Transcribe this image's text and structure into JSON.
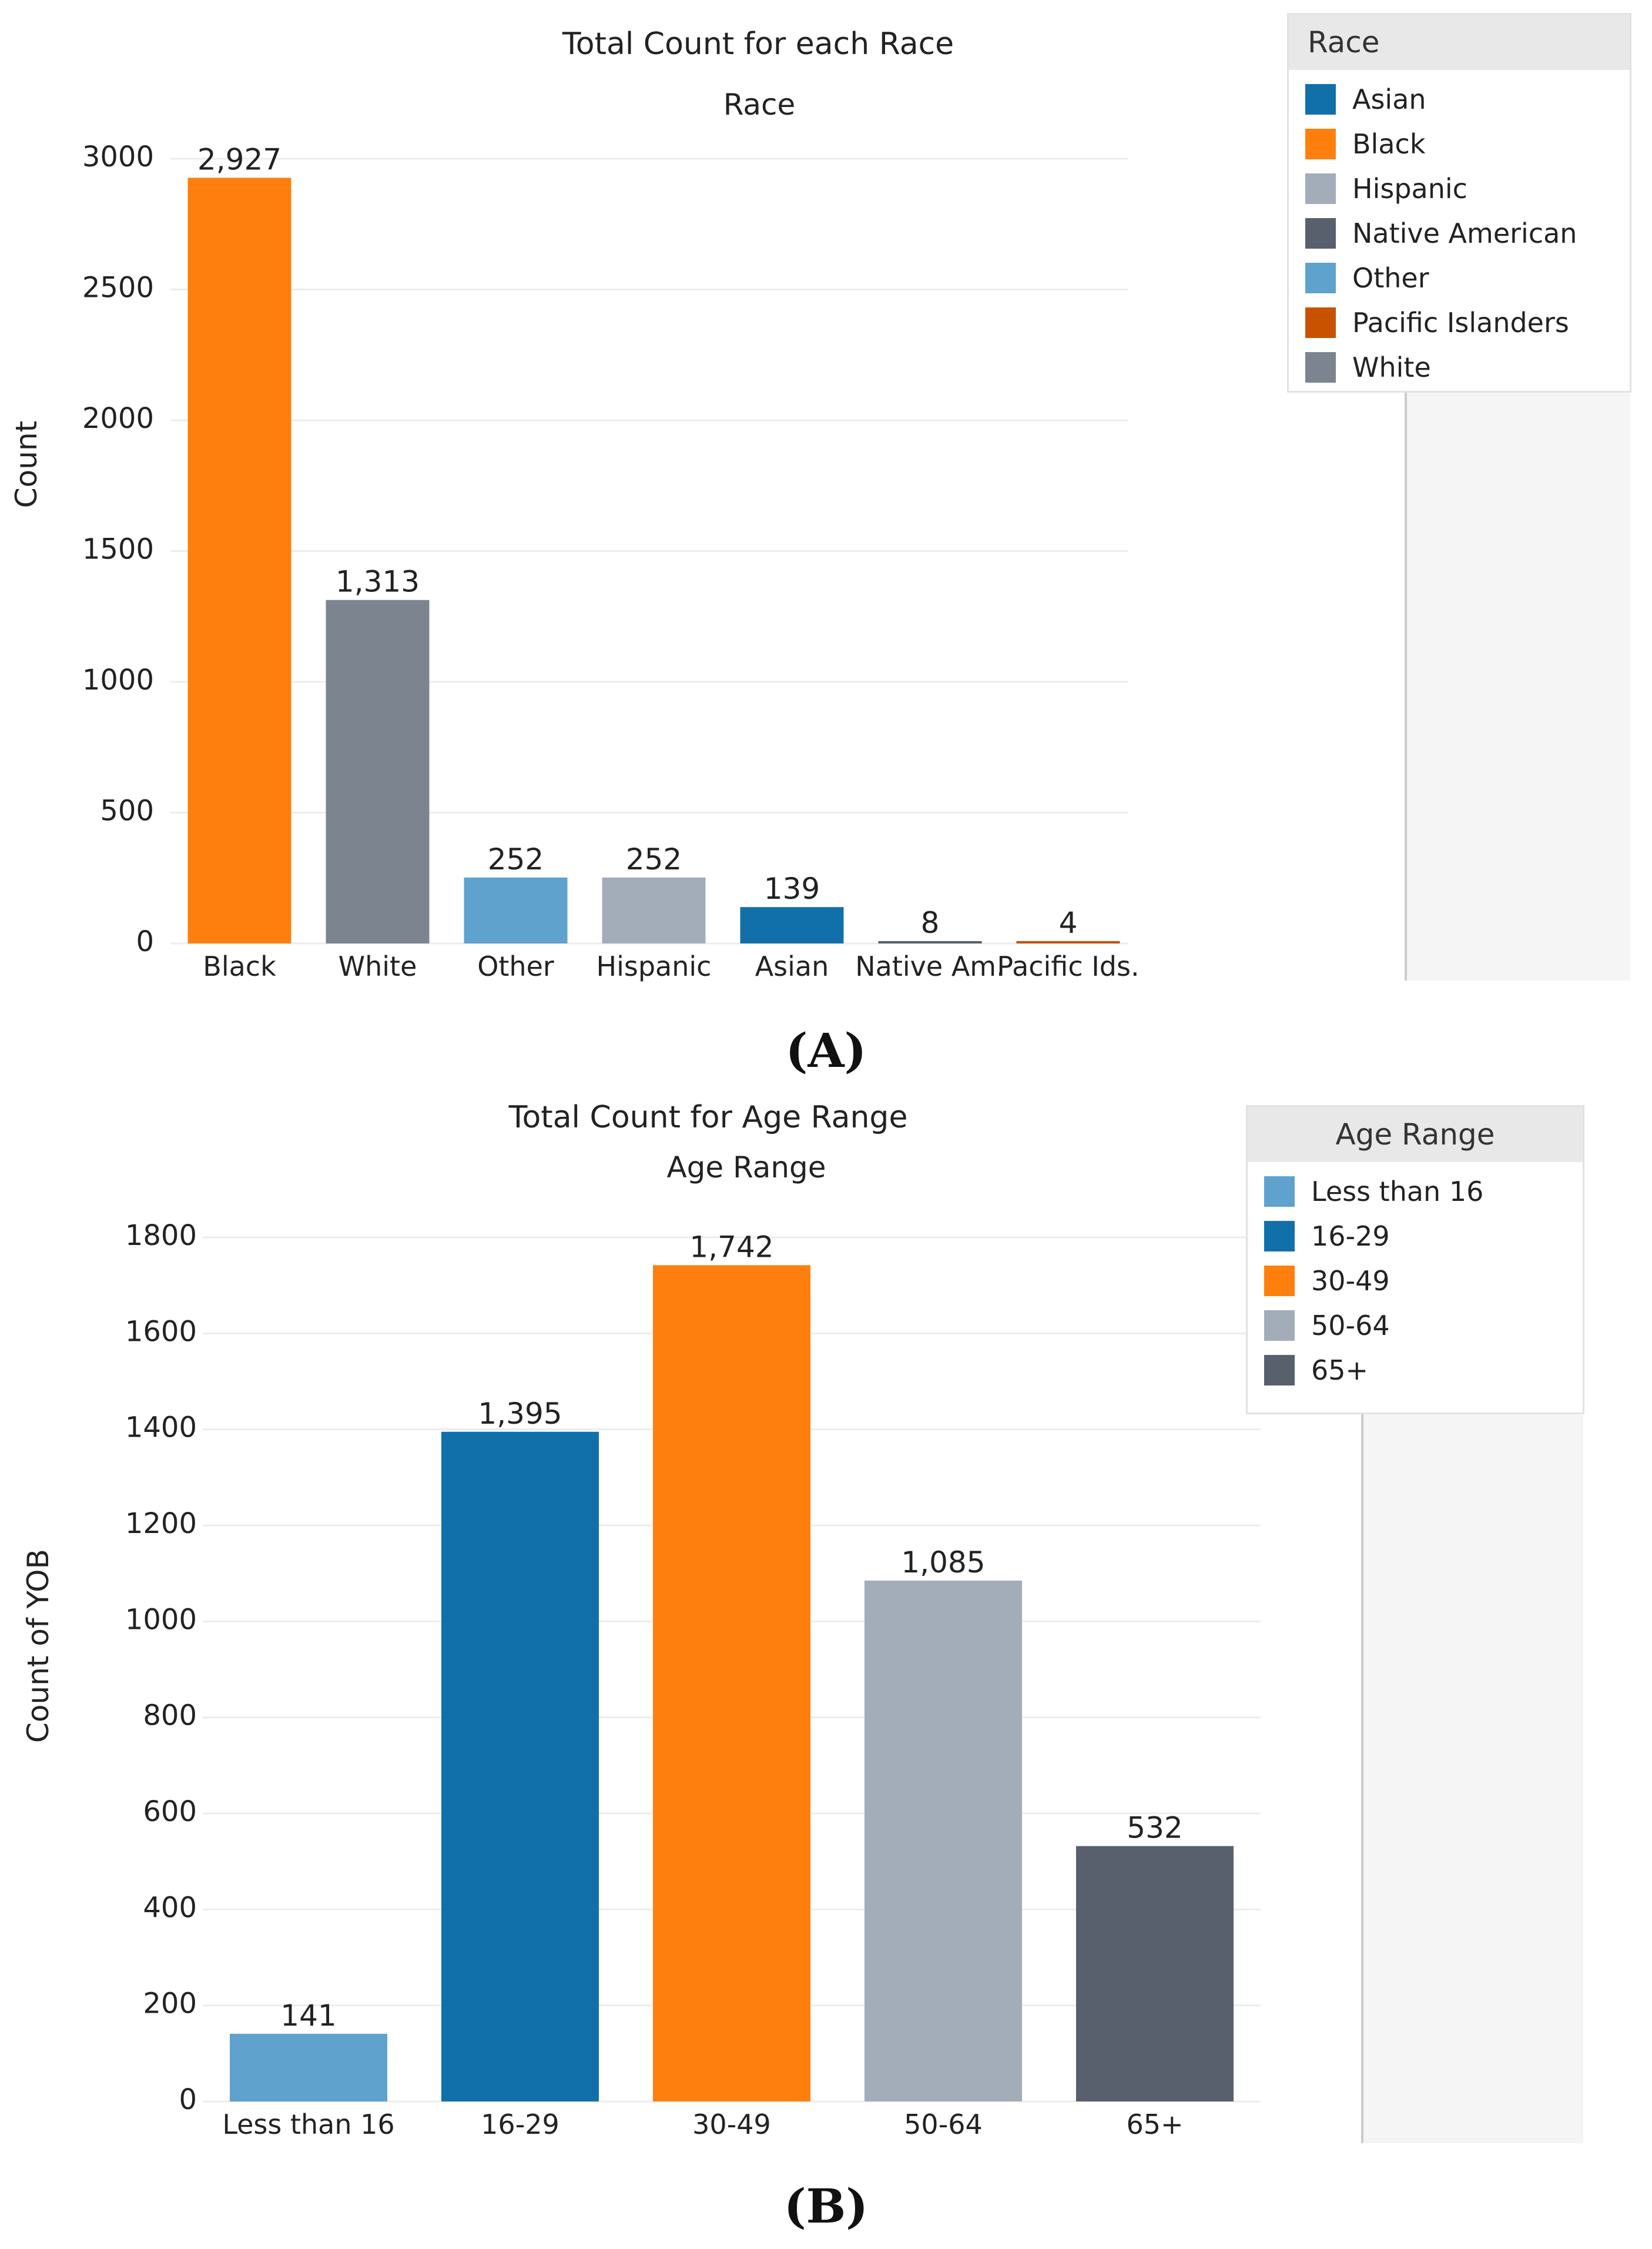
{
  "chart_data": [
    {
      "type": "bar",
      "title": "Total Count for each Race",
      "subtitle": "Race",
      "xlabel": "",
      "ylabel": "Count",
      "ylim": [
        0,
        3000
      ],
      "yticks": [
        0,
        500,
        1000,
        1500,
        2000,
        2500,
        3000
      ],
      "grid": true,
      "categories": [
        "Black",
        "White",
        "Other",
        "Hispanic",
        "Asian",
        "Native Am.",
        "Pacific Ids."
      ],
      "values": [
        2927,
        1313,
        252,
        252,
        139,
        8,
        4
      ],
      "data_labels": [
        "2,927",
        "1,313",
        "252",
        "252",
        "139",
        "8",
        "4"
      ],
      "colors": [
        "#FF7F0E",
        "#7B848F",
        "#5FA2CE",
        "#A3ACB9",
        "#1170AA",
        "#57606C",
        "#C85200"
      ],
      "legend": {
        "title": "Race",
        "position": "top-right",
        "items": [
          {
            "label": "Asian",
            "color": "#1170AA"
          },
          {
            "label": "Black",
            "color": "#FF7F0E"
          },
          {
            "label": "Hispanic",
            "color": "#A3ACB9"
          },
          {
            "label": "Native American",
            "color": "#57606C"
          },
          {
            "label": "Other",
            "color": "#5FA2CE"
          },
          {
            "label": "Pacific Islanders",
            "color": "#C85200"
          },
          {
            "label": "White",
            "color": "#7B848F"
          }
        ]
      }
    },
    {
      "type": "bar",
      "title": "Total Count for Age Range",
      "subtitle": "Age Range",
      "xlabel": "",
      "ylabel": "Count of YOB",
      "ylim": [
        0,
        1800
      ],
      "yticks": [
        0,
        200,
        400,
        600,
        800,
        1000,
        1200,
        1400,
        1600,
        1800
      ],
      "grid": true,
      "categories": [
        "Less than 16",
        "16-29",
        "30-49",
        "50-64",
        "65+"
      ],
      "values": [
        141,
        1395,
        1742,
        1085,
        532
      ],
      "data_labels": [
        "141",
        "1,395",
        "1,742",
        "1,085",
        "532"
      ],
      "colors": [
        "#5FA2CE",
        "#1170AA",
        "#FF7F0E",
        "#A3ACB9",
        "#57606C"
      ],
      "legend": {
        "title": "Age Range",
        "position": "top-right",
        "items": [
          {
            "label": "Less than 16",
            "color": "#5FA2CE"
          },
          {
            "label": "16-29",
            "color": "#1170AA"
          },
          {
            "label": "30-49",
            "color": "#FF7F0E"
          },
          {
            "label": "50-64",
            "color": "#A3ACB9"
          },
          {
            "label": "65+",
            "color": "#57606C"
          }
        ]
      }
    }
  ],
  "captions": {
    "a": "(A)",
    "b": "(B)"
  }
}
